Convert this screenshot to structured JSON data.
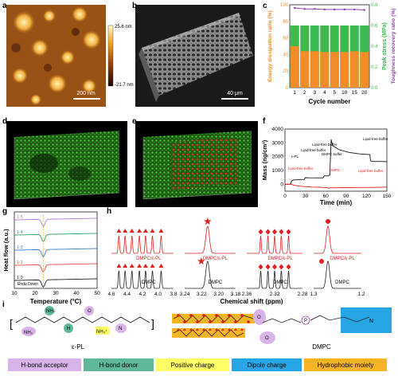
{
  "panel_labels": {
    "a": "a",
    "b": "b",
    "c": "c",
    "d": "d",
    "e": "e",
    "f": "f",
    "g": "g",
    "h": "h",
    "i": "i"
  },
  "panel_a": {
    "scale_max": "25.6 nm",
    "scale_min": "-21.7 nm",
    "scale_bar": "200 nm"
  },
  "panel_b": {
    "scale_bar": "40 μm"
  },
  "panel_c": {
    "xlabel": "Cycle number",
    "ylabel_left": "Energy dissipation ratio (%)",
    "ylabel_mid": "Peak stress (MPa)",
    "ylabel_right": "Toughness recovery ratio (%)",
    "categories": [
      "1",
      "2",
      "3",
      "4",
      "5",
      "10",
      "15",
      "20"
    ],
    "left_ticks": [
      "0",
      "20",
      "40",
      "60",
      "80",
      "100"
    ],
    "mid_ticks": [
      "0.0",
      "0.2",
      "0.4",
      "0.6",
      "0.8"
    ],
    "right_ticks": [
      "0",
      "20",
      "40",
      "60",
      "80",
      "100"
    ],
    "energy_dissipation": [
      50,
      44,
      44,
      43,
      43,
      43,
      44,
      43
    ],
    "peak_stress": [
      0.6,
      0.6,
      0.6,
      0.6,
      0.6,
      0.6,
      0.6,
      0.6
    ],
    "toughness_recovery": [
      100,
      98,
      98,
      97,
      97,
      97,
      97,
      96
    ]
  },
  "panel_f": {
    "xlabel": "Time (min)",
    "ylabel": "Mass (ng/cm²)",
    "x_ticks": [
      "0",
      "30",
      "60",
      "90",
      "120",
      "150"
    ],
    "y_ticks": [
      "0",
      "1000",
      "2000",
      "3000",
      "4000"
    ],
    "black_series": {
      "x": [
        0,
        8,
        10,
        13,
        28,
        30,
        35,
        56,
        58,
        63,
        64,
        66,
        68,
        70,
        80,
        95,
        110,
        125,
        126,
        128,
        130,
        140,
        150
      ],
      "y": [
        0,
        0,
        260,
        320,
        330,
        480,
        470,
        460,
        620,
        600,
        640,
        660,
        3250,
        2800,
        2500,
        2300,
        2200,
        2150,
        1700,
        1650,
        1650,
        1650,
        1640
      ]
    },
    "red_series": {
      "x": [
        0,
        10,
        12,
        20,
        40,
        60,
        62,
        64,
        66,
        70,
        90,
        110,
        125,
        130,
        150
      ],
      "y": [
        0,
        0,
        -60,
        -130,
        -200,
        -230,
        -250,
        -280,
        -260,
        -250,
        -240,
        -230,
        -230,
        -220,
        -210
      ]
    },
    "annotations": {
      "epl": "ε-PL",
      "lipid_free_1": "Lipid-free buffer",
      "lipid_free_2": "Lipid-free buffer",
      "dmpc_1": "DMPC buffer",
      "lipid_free_3": "Lipid-free buffer",
      "lipid_free_4": "Lipid-free buffer",
      "dmpc_2": "DMPC",
      "lipid_free_red": "Lipid-free buffer"
    }
  },
  "panel_g": {
    "xlabel": "Temperature (°C)",
    "ylabel": "Heat flow (a.u.)",
    "x_ticks": [
      "10",
      "20",
      "30",
      "40",
      "50"
    ],
    "endo": "Endo Down",
    "curves": [
      {
        "label": "1:5",
        "color": "#b07fd0"
      },
      {
        "label": "1:4",
        "color": "#33a06b"
      },
      {
        "label": "1:3",
        "color": "#3a7ec0"
      },
      {
        "label": "1:1",
        "color": "#e24848"
      },
      {
        "label": "1:0",
        "color": "#222222"
      }
    ],
    "peak_temperature": 24
  },
  "panel_h": {
    "xlabel": "Chemical shift (ppm)",
    "label_mix": "DMPC/ε-PL",
    "label_dmpc": "DMPC",
    "sub1_ticks": [
      "4.6",
      "4.4",
      "4.2",
      "4.0",
      "3.8"
    ],
    "sub2_ticks": [
      "3.24",
      "3.22",
      "3.20",
      "3.18"
    ],
    "sub3_ticks": [
      "2.36",
      "2.32",
      "2.28"
    ],
    "sub4_ticks": [
      "1.3",
      "1.2"
    ]
  },
  "panel_i": {
    "epl_label": "ε-PL",
    "dmpc_label": "DMPC",
    "nh2": "NH₂",
    "nh3": "NH₃⁺",
    "h_atom": "H",
    "n_atom": "N",
    "o_atom": "O",
    "p_atom": "P",
    "legend": [
      {
        "label": "H-bond acceptor",
        "color": "#d8b4e8"
      },
      {
        "label": "H-bond donor",
        "color": "#5fb89a"
      },
      {
        "label": "Positive charge",
        "color": "#ffff66"
      },
      {
        "label": "Dipole charge",
        "color": "#27a6e6"
      },
      {
        "label": "Hydrophobic moiety",
        "color": "#f7b526"
      }
    ]
  },
  "colors": {
    "orange": "#f28c28",
    "green": "#3dba4e",
    "purple": "#8e44ad",
    "red": "#e02020"
  }
}
